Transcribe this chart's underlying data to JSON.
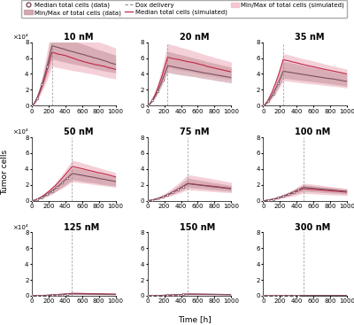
{
  "concentrations": [
    "10 nM",
    "20 nM",
    "35 nM",
    "50 nM",
    "75 nM",
    "100 nM",
    "125 nM",
    "150 nM",
    "300 nM"
  ],
  "nrows": 3,
  "ncols": 3,
  "xlim": [
    0,
    1000
  ],
  "ylim": [
    0,
    80000.0
  ],
  "yticks": [
    0,
    20000.0,
    40000.0,
    60000.0,
    80000.0
  ],
  "xticks": [
    0,
    200,
    400,
    600,
    800,
    1000
  ],
  "xlabel": "Time [h]",
  "ylabel": "Tumor cells",
  "dox_times": [
    240,
    240,
    240,
    480,
    480,
    480,
    480,
    480,
    480
  ],
  "max_cells": [
    75000,
    55000,
    45000,
    35000,
    22000,
    15000,
    3000,
    2000,
    500
  ],
  "spread_low": [
    0.7,
    0.7,
    0.7,
    0.7,
    0.65,
    0.65,
    0.65,
    0.65,
    0.65
  ],
  "spread_high": [
    1.3,
    1.3,
    1.3,
    1.3,
    1.35,
    1.35,
    1.35,
    1.35,
    1.35
  ],
  "color_data_fill": "#c8969e",
  "color_sim_fill": "#f0bcc8",
  "color_median_data": "#7a5060",
  "color_median_sim": "#c02848",
  "color_dox": "#888888",
  "legend_fontsize": 5.0,
  "tick_fontsize": 5,
  "label_fontsize": 6.5,
  "title_fontsize": 7
}
